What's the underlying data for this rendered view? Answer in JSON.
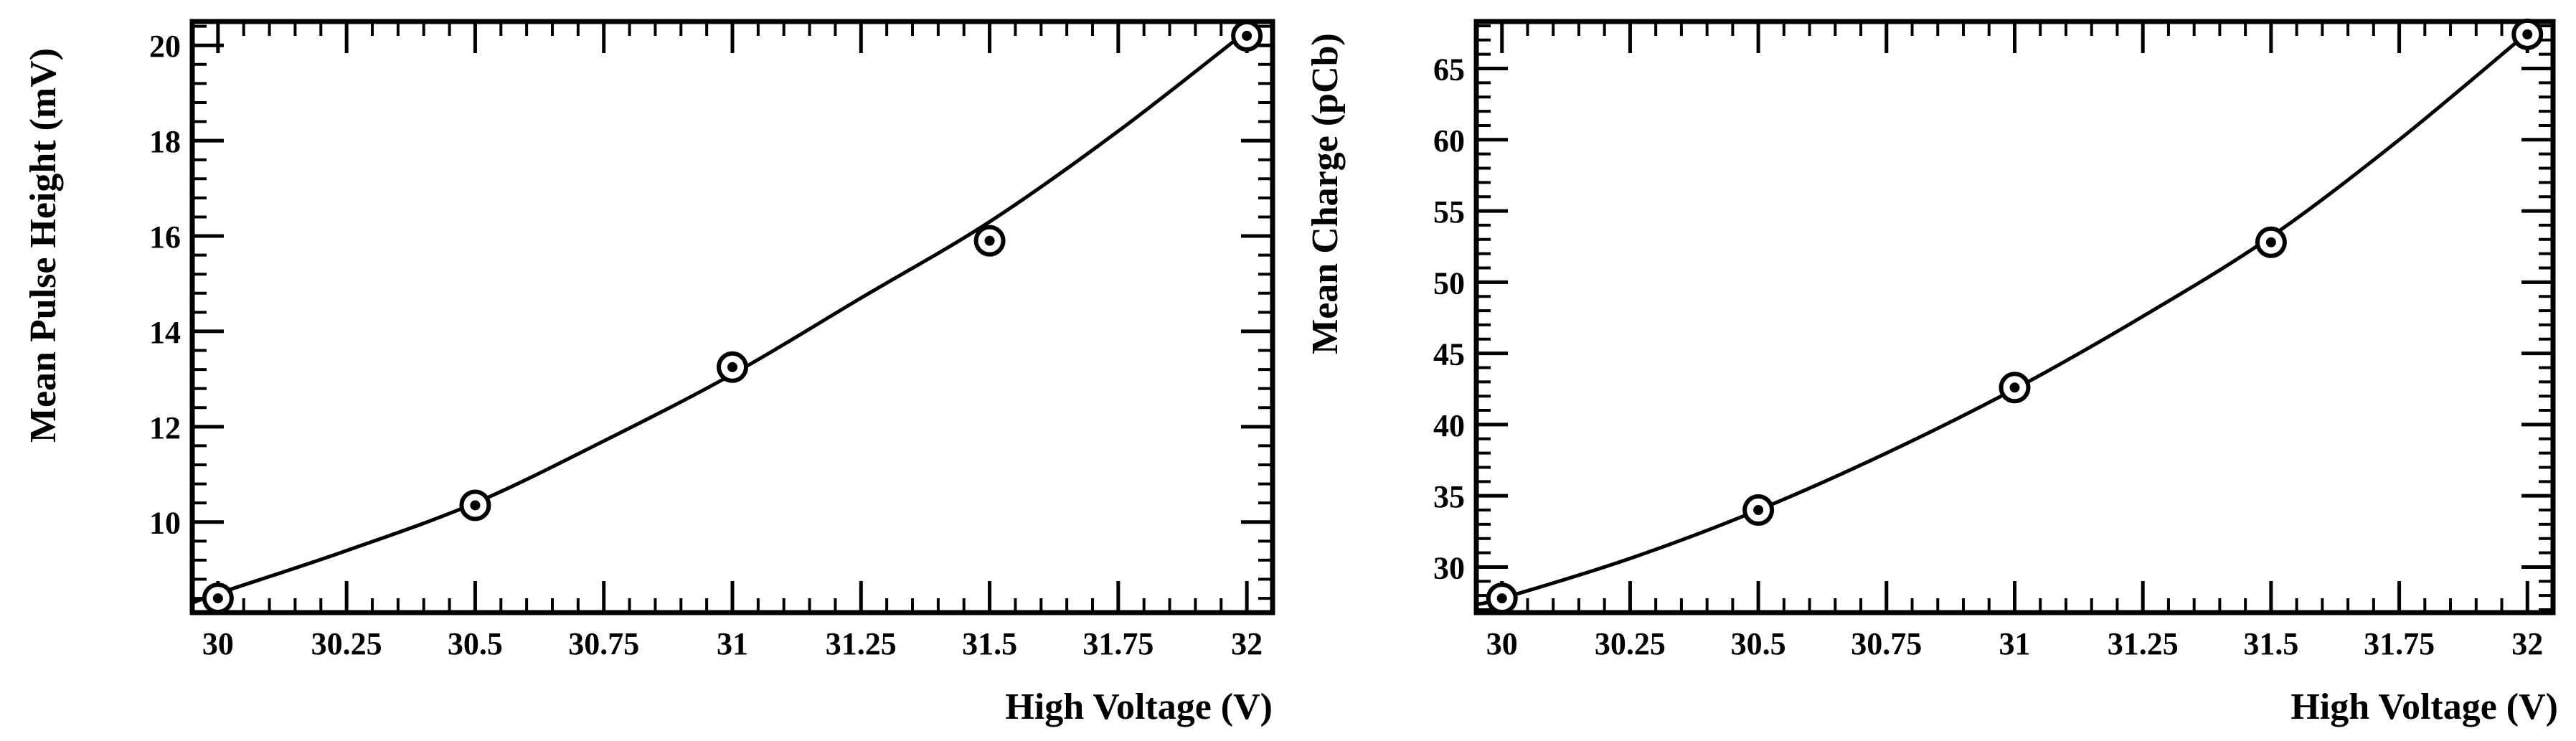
{
  "chart_data": [
    {
      "type": "scatter",
      "fit": "curve",
      "title": "",
      "xlabel": "High Voltage (V)",
      "ylabel": "Mean Pulse Height (mV)",
      "x": [
        30,
        30.5,
        31,
        31.5,
        32
      ],
      "y": [
        8.4,
        10.35,
        13.25,
        15.9,
        20.2
      ],
      "fit_x": [
        29.95,
        30,
        30.25,
        30.5,
        30.75,
        31,
        31.25,
        31.5,
        31.75,
        32
      ],
      "fit_y": [
        8.3,
        8.5,
        9.4,
        10.4,
        11.7,
        13.1,
        14.7,
        16.3,
        18.2,
        20.3
      ],
      "xlim": [
        29.95,
        32.05
      ],
      "ylim": [
        8.1,
        20.5
      ],
      "xticks": [
        30,
        30.25,
        30.5,
        30.75,
        31,
        31.25,
        31.5,
        31.75,
        32
      ],
      "xtick_labels": [
        "30",
        "30.25",
        "30.5",
        "30.75",
        "31",
        "31.25",
        "31.5",
        "31.75",
        "32"
      ],
      "yticks": [
        10,
        12,
        14,
        16,
        18,
        20
      ],
      "ytick_labels": [
        "10",
        "12",
        "14",
        "16",
        "18",
        "20"
      ],
      "x_minor_step": 0.05,
      "y_minor_step": 0.4,
      "grid": false,
      "legend": "none"
    },
    {
      "type": "scatter",
      "fit": "curve",
      "title": "",
      "xlabel": "High Voltage (V)",
      "ylabel": "Mean Charge (pCb)",
      "x": [
        30,
        30.5,
        31,
        31.5,
        32
      ],
      "y": [
        27.8,
        34.0,
        42.6,
        52.8,
        67.4
      ],
      "fit_x": [
        29.95,
        30,
        30.25,
        30.5,
        30.75,
        31,
        31.25,
        31.5,
        31.75,
        32
      ],
      "fit_y": [
        27.4,
        27.8,
        30.6,
        34.0,
        38.0,
        42.5,
        47.6,
        53.2,
        60.0,
        67.5
      ],
      "xlim": [
        29.95,
        32.05
      ],
      "ylim": [
        26.8,
        68.3
      ],
      "xticks": [
        30,
        30.25,
        30.5,
        30.75,
        31,
        31.25,
        31.5,
        31.75,
        32
      ],
      "xtick_labels": [
        "30",
        "30.25",
        "30.5",
        "30.75",
        "31",
        "31.25",
        "31.5",
        "31.75",
        "32"
      ],
      "yticks": [
        30,
        35,
        40,
        45,
        50,
        55,
        60,
        65
      ],
      "ytick_labels": [
        "30",
        "35",
        "40",
        "45",
        "50",
        "55",
        "60",
        "65"
      ],
      "x_minor_step": 0.05,
      "y_minor_step": 1,
      "grid": false,
      "legend": "none"
    }
  ]
}
